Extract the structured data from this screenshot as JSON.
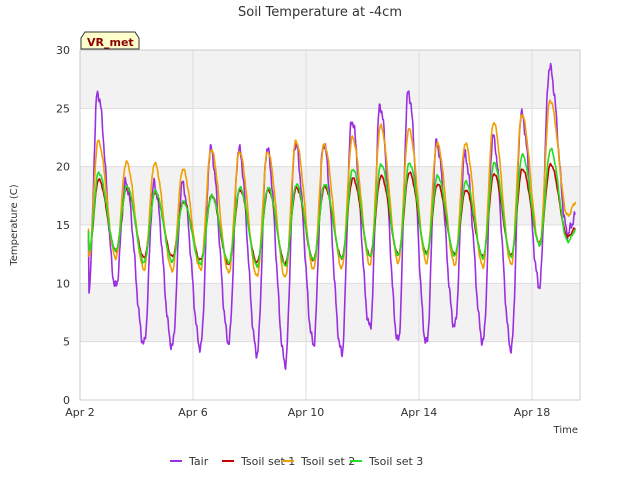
{
  "chart_data": {
    "type": "line",
    "title": "Soil Temperature at -4cm",
    "xlabel": "Time",
    "ylabel": "Temperature (C)",
    "site_label": "VR_met",
    "xlim": [
      "Apr 2",
      "Apr 19.7"
    ],
    "ylim": [
      0,
      30
    ],
    "y_ticks": [
      0,
      5,
      10,
      15,
      20,
      25,
      30
    ],
    "x_ticks": [
      {
        "day": 2,
        "label": "Apr 2"
      },
      {
        "day": 6,
        "label": "Apr 6"
      },
      {
        "day": 10,
        "label": "Apr 10"
      },
      {
        "day": 14,
        "label": "Apr 14"
      },
      {
        "day": 18,
        "label": "Apr 18"
      }
    ],
    "grid": true,
    "background_bands": true,
    "legend_position": "bottom",
    "series": [
      {
        "name": "Tair",
        "color": "#9b30e0",
        "daily_min": [
          9.7,
          4.8,
          4.6,
          4.5,
          5.0,
          4.0,
          3.1,
          4.8,
          4.0,
          6.2,
          5.0,
          4.8,
          6.3,
          5.0,
          4.4,
          9.8,
          14.3
        ],
        "daily_max": [
          26.3,
          18.6,
          18.5,
          18.5,
          21.5,
          21.5,
          21.5,
          22.0,
          22.0,
          24.0,
          25.2,
          26.4,
          22.0,
          21.0,
          22.5,
          24.5,
          28.5,
          29.5
        ]
      },
      {
        "name": "Tsoil set 1",
        "color": "#cc0000",
        "daily_min": [
          12.8,
          12.2,
          12.3,
          12.0,
          11.6,
          11.8,
          11.7,
          12.0,
          12.2,
          12.4,
          12.5,
          12.6,
          12.5,
          12.3,
          12.4,
          13.5,
          14.0
        ],
        "daily_max": [
          18.9,
          18.2,
          17.8,
          17.0,
          17.5,
          18.0,
          18.0,
          18.2,
          18.3,
          19.0,
          19.2,
          19.5,
          18.5,
          18.0,
          19.4,
          19.8,
          20.2,
          21.3
        ]
      },
      {
        "name": "Tsoil set 2",
        "color": "#f0a000",
        "daily_min": [
          12.2,
          11.2,
          11.1,
          11.2,
          10.9,
          10.6,
          10.5,
          11.2,
          11.3,
          11.6,
          11.8,
          11.8,
          11.6,
          11.4,
          11.6,
          13.3,
          15.8
        ],
        "daily_max": [
          22.2,
          20.4,
          20.3,
          19.8,
          21.5,
          21.3,
          21.3,
          22.2,
          21.9,
          22.5,
          23.5,
          23.2,
          22.0,
          22.0,
          23.8,
          24.5,
          25.7,
          27.5
        ]
      },
      {
        "name": "Tsoil set 3",
        "color": "#22dd22",
        "daily_min": [
          12.8,
          11.8,
          11.9,
          11.7,
          11.8,
          11.5,
          11.5,
          12.0,
          12.1,
          12.3,
          12.4,
          12.5,
          12.4,
          12.2,
          12.3,
          13.3,
          13.6
        ],
        "daily_max": [
          19.5,
          18.3,
          17.9,
          17.0,
          17.5,
          18.2,
          18.2,
          18.5,
          18.5,
          19.8,
          20.2,
          20.3,
          19.2,
          18.7,
          20.3,
          21.0,
          21.5,
          23.0
        ]
      }
    ]
  }
}
